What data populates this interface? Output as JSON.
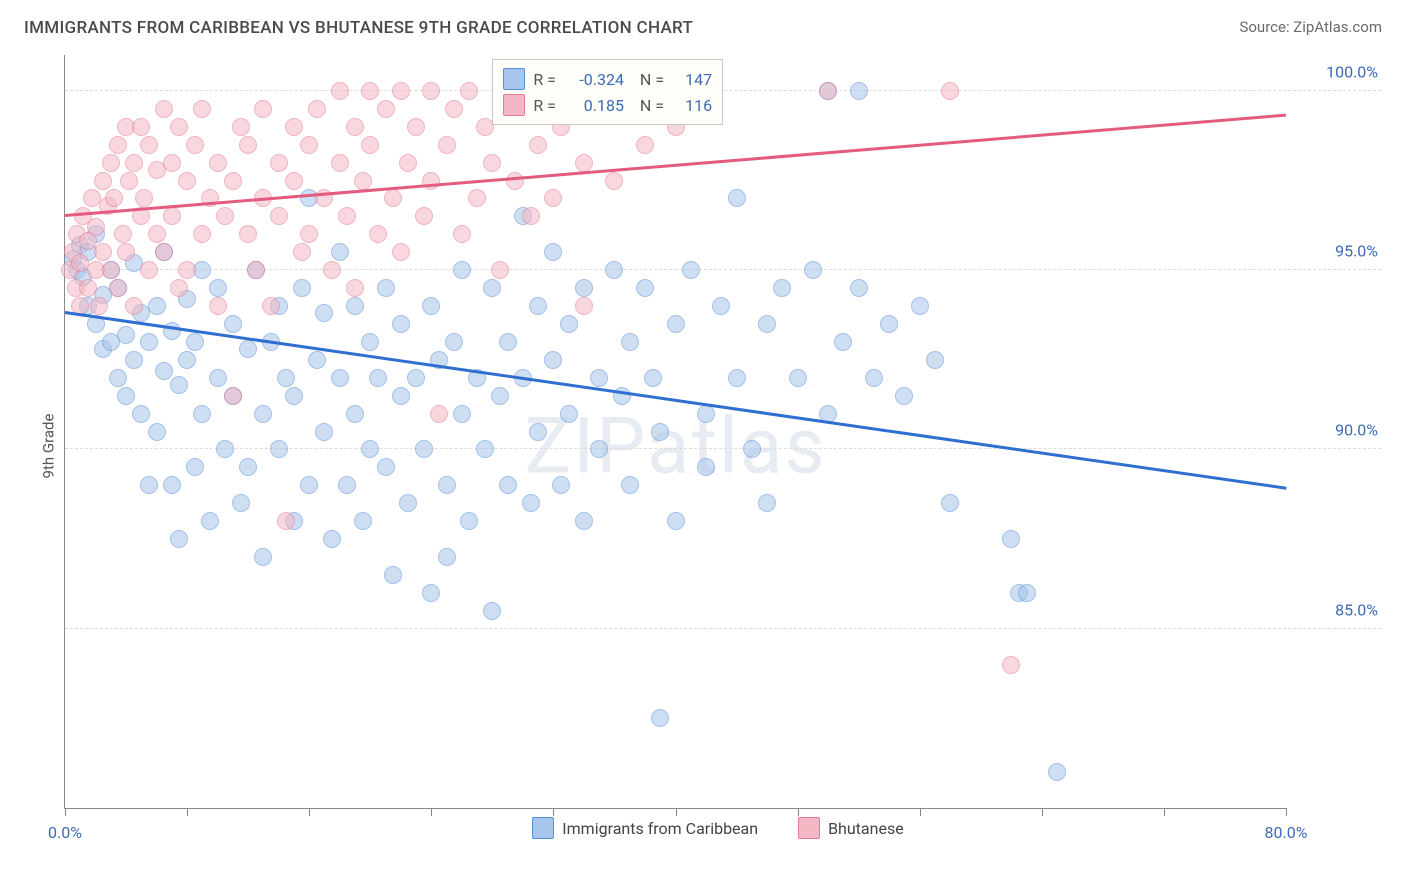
{
  "header": {
    "title": "IMMIGRANTS FROM CARIBBEAN VS BHUTANESE 9TH GRADE CORRELATION CHART",
    "source": "Source: ZipAtlas.com"
  },
  "watermark": "ZIPatlas",
  "chart": {
    "type": "scatter",
    "y_label": "9th Grade",
    "xlim": [
      0,
      80
    ],
    "ylim": [
      80,
      101
    ],
    "y_ticks": [
      85.0,
      90.0,
      95.0,
      100.0
    ],
    "y_tick_labels": [
      "85.0%",
      "90.0%",
      "95.0%",
      "100.0%"
    ],
    "x_tick_positions": [
      0,
      8,
      16,
      24,
      32,
      40,
      48,
      56,
      64,
      72,
      80
    ],
    "x_tick_labels": {
      "0": "0.0%",
      "80": "80.0%"
    },
    "background_color": "#ffffff",
    "grid_color": "#dcdcdc",
    "axis_color": "#888888",
    "label_color": "#3b6bb5",
    "label_fontsize": 16,
    "title_fontsize": 17,
    "marker_size": 18,
    "marker_opacity": 0.55,
    "series": [
      {
        "name": "Immigrants from Caribbean",
        "fill_color": "#a7c5ea",
        "stroke_color": "#5a8fd6",
        "trend_color": "#2f6fd0",
        "trend_width": 2.5,
        "R": "-0.324",
        "N": "147",
        "trend_y_at_xmin": 93.8,
        "trend_y_at_xmax": 88.9,
        "points": [
          [
            0.5,
            95.3
          ],
          [
            0.8,
            95.0
          ],
          [
            1.0,
            95.7
          ],
          [
            1.2,
            94.8
          ],
          [
            1.5,
            95.5
          ],
          [
            1.5,
            94.0
          ],
          [
            2.0,
            96.0
          ],
          [
            2.0,
            93.5
          ],
          [
            2.5,
            94.3
          ],
          [
            2.5,
            92.8
          ],
          [
            3.0,
            93.0
          ],
          [
            3.0,
            95.0
          ],
          [
            3.5,
            92.0
          ],
          [
            3.5,
            94.5
          ],
          [
            4.0,
            91.5
          ],
          [
            4.0,
            93.2
          ],
          [
            4.5,
            92.5
          ],
          [
            4.5,
            95.2
          ],
          [
            5.0,
            93.8
          ],
          [
            5.0,
            91.0
          ],
          [
            5.5,
            89.0
          ],
          [
            5.5,
            93.0
          ],
          [
            6.0,
            94.0
          ],
          [
            6.0,
            90.5
          ],
          [
            6.5,
            92.2
          ],
          [
            6.5,
            95.5
          ],
          [
            7.0,
            89.0
          ],
          [
            7.0,
            93.3
          ],
          [
            7.5,
            91.8
          ],
          [
            7.5,
            87.5
          ],
          [
            8.0,
            92.5
          ],
          [
            8.0,
            94.2
          ],
          [
            8.5,
            89.5
          ],
          [
            8.5,
            93.0
          ],
          [
            9.0,
            91.0
          ],
          [
            9.0,
            95.0
          ],
          [
            9.5,
            88.0
          ],
          [
            10.0,
            92.0
          ],
          [
            10.0,
            94.5
          ],
          [
            10.5,
            90.0
          ],
          [
            11.0,
            91.5
          ],
          [
            11.0,
            93.5
          ],
          [
            11.5,
            88.5
          ],
          [
            12.0,
            92.8
          ],
          [
            12.0,
            89.5
          ],
          [
            12.5,
            95.0
          ],
          [
            13.0,
            91.0
          ],
          [
            13.0,
            87.0
          ],
          [
            13.5,
            93.0
          ],
          [
            14.0,
            90.0
          ],
          [
            14.0,
            94.0
          ],
          [
            14.5,
            92.0
          ],
          [
            15.0,
            88.0
          ],
          [
            15.0,
            91.5
          ],
          [
            15.5,
            94.5
          ],
          [
            16.0,
            89.0
          ],
          [
            16.0,
            97.0
          ],
          [
            16.5,
            92.5
          ],
          [
            17.0,
            90.5
          ],
          [
            17.0,
            93.8
          ],
          [
            17.5,
            87.5
          ],
          [
            18.0,
            92.0
          ],
          [
            18.0,
            95.5
          ],
          [
            18.5,
            89.0
          ],
          [
            19.0,
            91.0
          ],
          [
            19.0,
            94.0
          ],
          [
            19.5,
            88.0
          ],
          [
            20.0,
            93.0
          ],
          [
            20.0,
            90.0
          ],
          [
            20.5,
            92.0
          ],
          [
            21.0,
            94.5
          ],
          [
            21.0,
            89.5
          ],
          [
            21.5,
            86.5
          ],
          [
            22.0,
            91.5
          ],
          [
            22.0,
            93.5
          ],
          [
            22.5,
            88.5
          ],
          [
            23.0,
            92.0
          ],
          [
            23.5,
            90.0
          ],
          [
            24.0,
            94.0
          ],
          [
            24.0,
            86.0
          ],
          [
            24.5,
            92.5
          ],
          [
            25.0,
            89.0
          ],
          [
            25.0,
            87.0
          ],
          [
            25.5,
            93.0
          ],
          [
            26.0,
            91.0
          ],
          [
            26.0,
            95.0
          ],
          [
            26.5,
            88.0
          ],
          [
            27.0,
            92.0
          ],
          [
            27.5,
            90.0
          ],
          [
            28.0,
            94.5
          ],
          [
            28.0,
            85.5
          ],
          [
            28.5,
            91.5
          ],
          [
            29.0,
            93.0
          ],
          [
            29.0,
            89.0
          ],
          [
            30.0,
            96.5
          ],
          [
            30.0,
            92.0
          ],
          [
            30.5,
            88.5
          ],
          [
            31.0,
            94.0
          ],
          [
            31.0,
            90.5
          ],
          [
            32.0,
            92.5
          ],
          [
            32.0,
            95.5
          ],
          [
            32.5,
            89.0
          ],
          [
            33.0,
            91.0
          ],
          [
            33.0,
            93.5
          ],
          [
            34.0,
            88.0
          ],
          [
            34.0,
            94.5
          ],
          [
            35.0,
            92.0
          ],
          [
            35.0,
            90.0
          ],
          [
            36.0,
            95.0
          ],
          [
            36.5,
            91.5
          ],
          [
            37.0,
            93.0
          ],
          [
            37.0,
            89.0
          ],
          [
            38.0,
            94.5
          ],
          [
            38.5,
            92.0
          ],
          [
            39.0,
            82.5
          ],
          [
            39.0,
            90.5
          ],
          [
            40.0,
            93.5
          ],
          [
            40.0,
            88.0
          ],
          [
            41.0,
            95.0
          ],
          [
            42.0,
            91.0
          ],
          [
            42.0,
            89.5
          ],
          [
            43.0,
            94.0
          ],
          [
            44.0,
            92.0
          ],
          [
            44.0,
            97.0
          ],
          [
            45.0,
            90.0
          ],
          [
            46.0,
            93.5
          ],
          [
            46.0,
            88.5
          ],
          [
            47.0,
            94.5
          ],
          [
            48.0,
            92.0
          ],
          [
            49.0,
            95.0
          ],
          [
            50.0,
            91.0
          ],
          [
            50.0,
            100.0
          ],
          [
            51.0,
            93.0
          ],
          [
            52.0,
            94.5
          ],
          [
            52.0,
            100.0
          ],
          [
            53.0,
            92.0
          ],
          [
            54.0,
            93.5
          ],
          [
            55.0,
            91.5
          ],
          [
            56.0,
            94.0
          ],
          [
            57.0,
            92.5
          ],
          [
            58.0,
            88.5
          ],
          [
            62.0,
            87.5
          ],
          [
            62.5,
            86.0
          ],
          [
            63.0,
            86.0
          ],
          [
            65.0,
            81.0
          ]
        ]
      },
      {
        "name": "Bhutanese",
        "fill_color": "#f4b8c4",
        "stroke_color": "#e47a94",
        "trend_color": "#e35b7e",
        "trend_width": 2.5,
        "R": "0.185",
        "N": "116",
        "trend_y_at_xmin": 96.5,
        "trend_y_at_xmax": 99.3,
        "points": [
          [
            0.3,
            95.0
          ],
          [
            0.5,
            95.5
          ],
          [
            0.7,
            94.5
          ],
          [
            0.8,
            96.0
          ],
          [
            1.0,
            95.2
          ],
          [
            1.0,
            94.0
          ],
          [
            1.2,
            96.5
          ],
          [
            1.5,
            95.8
          ],
          [
            1.5,
            94.5
          ],
          [
            1.8,
            97.0
          ],
          [
            2.0,
            95.0
          ],
          [
            2.0,
            96.2
          ],
          [
            2.2,
            94.0
          ],
          [
            2.5,
            97.5
          ],
          [
            2.5,
            95.5
          ],
          [
            2.8,
            96.8
          ],
          [
            3.0,
            98.0
          ],
          [
            3.0,
            95.0
          ],
          [
            3.2,
            97.0
          ],
          [
            3.5,
            94.5
          ],
          [
            3.5,
            98.5
          ],
          [
            3.8,
            96.0
          ],
          [
            4.0,
            99.0
          ],
          [
            4.0,
            95.5
          ],
          [
            4.2,
            97.5
          ],
          [
            4.5,
            98.0
          ],
          [
            4.5,
            94.0
          ],
          [
            5.0,
            96.5
          ],
          [
            5.0,
            99.0
          ],
          [
            5.2,
            97.0
          ],
          [
            5.5,
            95.0
          ],
          [
            5.5,
            98.5
          ],
          [
            6.0,
            97.8
          ],
          [
            6.0,
            96.0
          ],
          [
            6.5,
            99.5
          ],
          [
            6.5,
            95.5
          ],
          [
            7.0,
            98.0
          ],
          [
            7.0,
            96.5
          ],
          [
            7.5,
            99.0
          ],
          [
            7.5,
            94.5
          ],
          [
            8.0,
            97.5
          ],
          [
            8.0,
            95.0
          ],
          [
            8.5,
            98.5
          ],
          [
            9.0,
            96.0
          ],
          [
            9.0,
            99.5
          ],
          [
            9.5,
            97.0
          ],
          [
            10.0,
            98.0
          ],
          [
            10.0,
            94.0
          ],
          [
            10.5,
            96.5
          ],
          [
            11.0,
            91.5
          ],
          [
            11.0,
            97.5
          ],
          [
            11.5,
            99.0
          ],
          [
            12.0,
            96.0
          ],
          [
            12.0,
            98.5
          ],
          [
            12.5,
            95.0
          ],
          [
            13.0,
            97.0
          ],
          [
            13.0,
            99.5
          ],
          [
            13.5,
            94.0
          ],
          [
            14.0,
            98.0
          ],
          [
            14.0,
            96.5
          ],
          [
            14.5,
            88.0
          ],
          [
            15.0,
            97.5
          ],
          [
            15.0,
            99.0
          ],
          [
            15.5,
            95.5
          ],
          [
            16.0,
            98.5
          ],
          [
            16.0,
            96.0
          ],
          [
            16.5,
            99.5
          ],
          [
            17.0,
            97.0
          ],
          [
            17.5,
            95.0
          ],
          [
            18.0,
            98.0
          ],
          [
            18.0,
            100.0
          ],
          [
            18.5,
            96.5
          ],
          [
            19.0,
            99.0
          ],
          [
            19.0,
            94.5
          ],
          [
            19.5,
            97.5
          ],
          [
            20.0,
            100.0
          ],
          [
            20.0,
            98.5
          ],
          [
            20.5,
            96.0
          ],
          [
            21.0,
            99.5
          ],
          [
            21.5,
            97.0
          ],
          [
            22.0,
            100.0
          ],
          [
            22.0,
            95.5
          ],
          [
            22.5,
            98.0
          ],
          [
            23.0,
            99.0
          ],
          [
            23.5,
            96.5
          ],
          [
            24.0,
            100.0
          ],
          [
            24.0,
            97.5
          ],
          [
            24.5,
            91.0
          ],
          [
            25.0,
            98.5
          ],
          [
            25.5,
            99.5
          ],
          [
            26.0,
            96.0
          ],
          [
            26.5,
            100.0
          ],
          [
            27.0,
            97.0
          ],
          [
            27.5,
            99.0
          ],
          [
            28.0,
            98.0
          ],
          [
            28.5,
            95.0
          ],
          [
            29.0,
            100.0
          ],
          [
            29.5,
            97.5
          ],
          [
            30.0,
            99.5
          ],
          [
            30.5,
            96.5
          ],
          [
            31.0,
            98.5
          ],
          [
            31.0,
            100.0
          ],
          [
            32.0,
            97.0
          ],
          [
            32.5,
            99.0
          ],
          [
            33.0,
            100.0
          ],
          [
            34.0,
            98.0
          ],
          [
            34.0,
            94.0
          ],
          [
            35.0,
            99.5
          ],
          [
            36.0,
            97.5
          ],
          [
            37.0,
            100.0
          ],
          [
            38.0,
            98.5
          ],
          [
            40.0,
            99.0
          ],
          [
            50.0,
            100.0
          ],
          [
            58.0,
            100.0
          ],
          [
            62.0,
            84.0
          ]
        ]
      }
    ]
  },
  "bottom_legend": [
    {
      "label": "Immigrants from Caribbean",
      "fill": "#a7c5ea",
      "stroke": "#5a8fd6"
    },
    {
      "label": "Bhutanese",
      "fill": "#f4b8c4",
      "stroke": "#e47a94"
    }
  ]
}
